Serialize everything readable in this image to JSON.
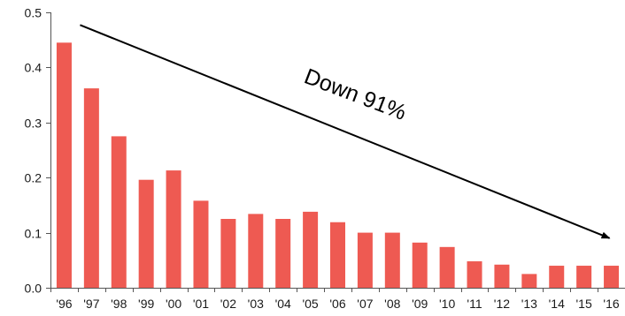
{
  "chart_data": {
    "type": "bar",
    "title": "",
    "xlabel": "",
    "ylabel": "",
    "categories": [
      "'96",
      "'97",
      "'98",
      "'99",
      "'00",
      "'01",
      "'02",
      "'03",
      "'04",
      "'05",
      "'06",
      "'07",
      "'08",
      "'09",
      "'10",
      "'11",
      "'12",
      "'13",
      "'14",
      "'15",
      "'16"
    ],
    "values": [
      0.445,
      0.362,
      0.275,
      0.196,
      0.213,
      0.158,
      0.125,
      0.134,
      0.125,
      0.138,
      0.119,
      0.1,
      0.1,
      0.082,
      0.074,
      0.048,
      0.042,
      0.025,
      0.04,
      0.04,
      0.04
    ],
    "ylim": [
      0,
      0.5
    ],
    "yticks": [
      "0.0",
      "0.1",
      "0.2",
      "0.3",
      "0.4",
      "0.5"
    ],
    "grid": false,
    "legend": "none",
    "bar_color": "#ee5a52",
    "axis_color": "#555555",
    "annotation": {
      "text": "Down 91%",
      "arrow": {
        "from": {
          "category": "'96",
          "value": 0.477
        },
        "to": {
          "category": "'16",
          "value": 0.09
        }
      }
    }
  }
}
